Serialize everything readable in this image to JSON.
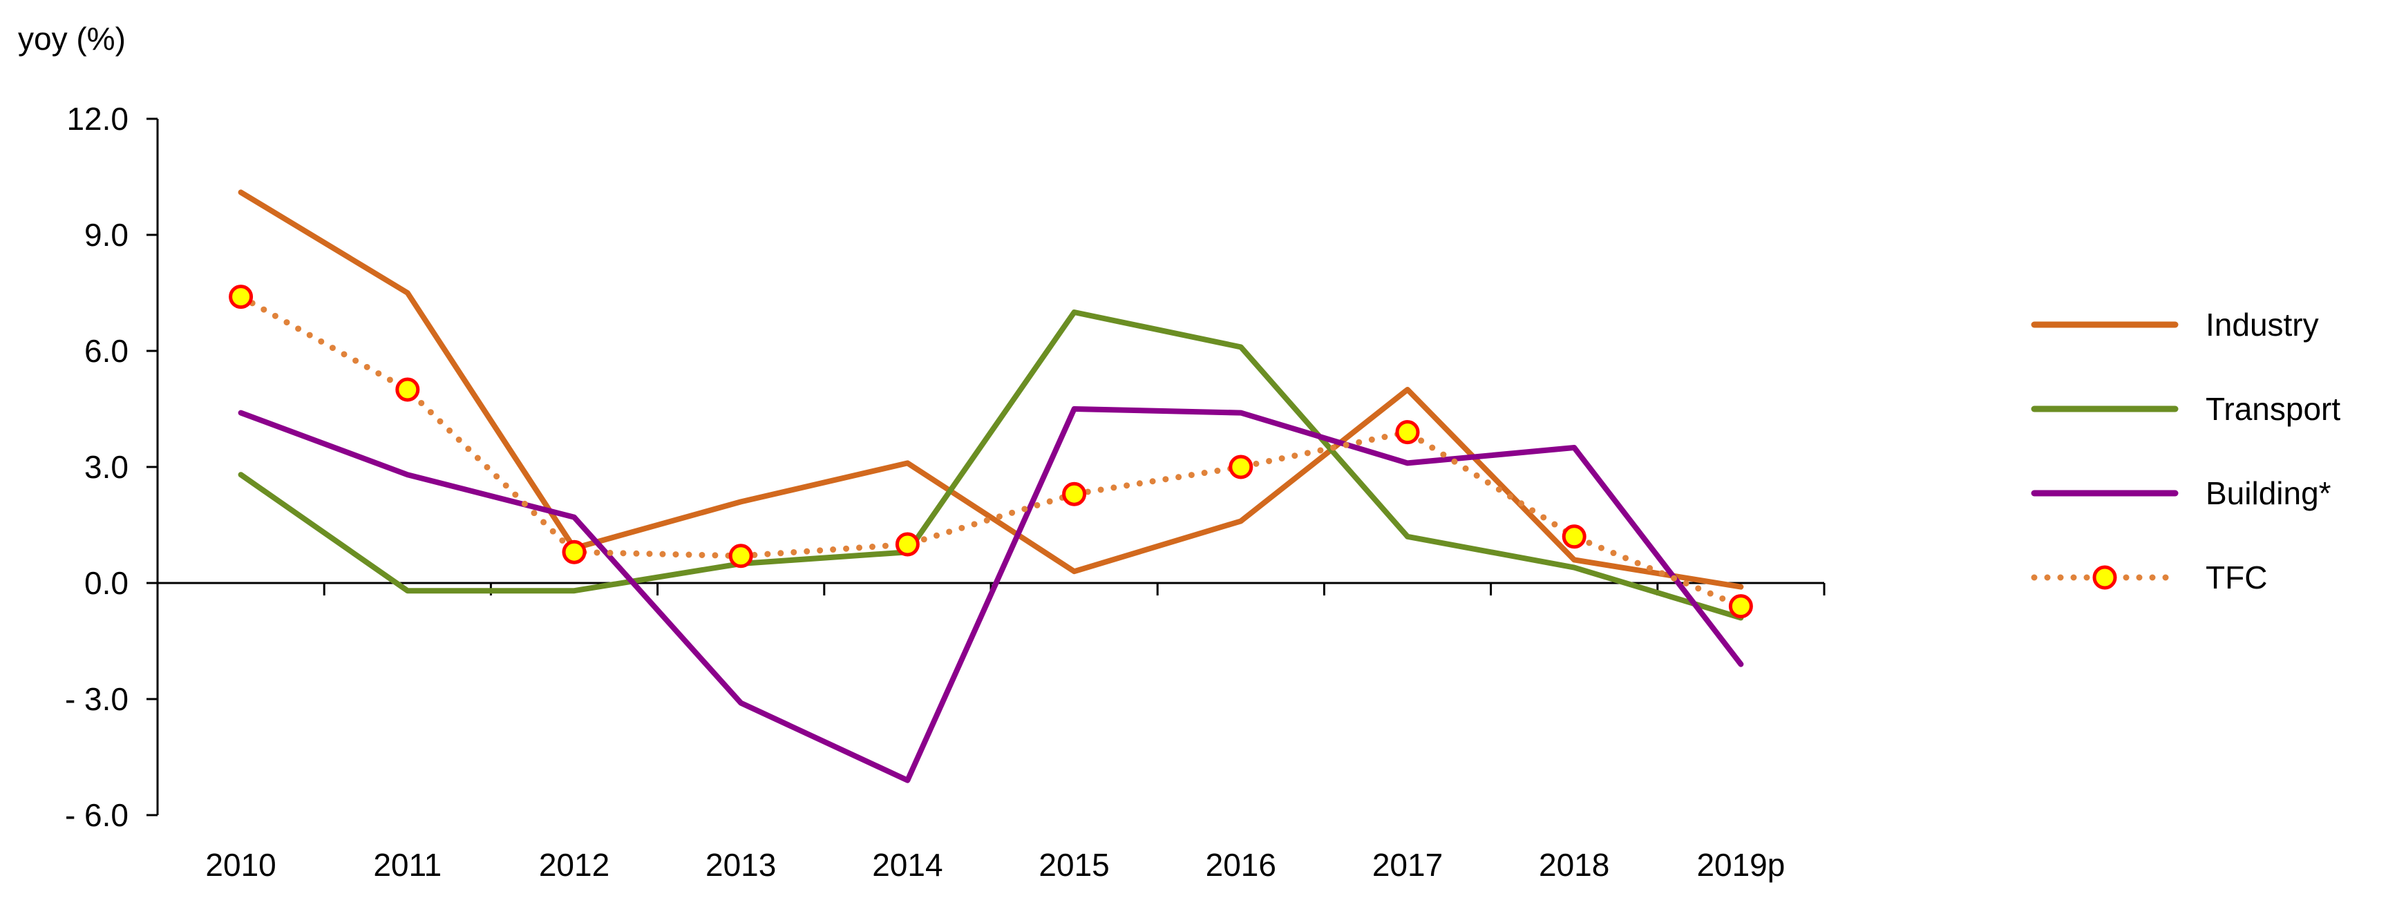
{
  "chart_data": {
    "type": "line",
    "ylabel": "yoy (%)",
    "xlabel": "",
    "categories": [
      "2010",
      "2011",
      "2012",
      "2013",
      "2014",
      "2015",
      "2016",
      "2017",
      "2018",
      "2019p"
    ],
    "ylim": [
      -6.0,
      12.0
    ],
    "yticks": [
      12.0,
      9.0,
      6.0,
      3.0,
      0.0,
      -3.0,
      -6.0
    ],
    "ytick_labels": [
      "12.0",
      "9.0",
      "6.0",
      "3.0",
      "0.0",
      "- 3.0",
      "- 6.0"
    ],
    "grid": false,
    "legend_position": "right",
    "series": [
      {
        "name": "Industry",
        "color": "#D2691E",
        "style": "solid",
        "marker": "none",
        "values": [
          10.1,
          7.5,
          0.9,
          2.1,
          3.1,
          0.3,
          1.6,
          5.0,
          0.6,
          -0.1
        ]
      },
      {
        "name": "Transport",
        "color": "#6B8E23",
        "style": "solid",
        "marker": "none",
        "values": [
          2.8,
          -0.2,
          -0.2,
          0.5,
          0.8,
          7.0,
          6.1,
          1.2,
          0.4,
          -0.9
        ]
      },
      {
        "name": "Building*",
        "color": "#8B008B",
        "style": "solid",
        "marker": "none",
        "values": [
          4.4,
          2.8,
          1.7,
          -3.1,
          -5.1,
          4.5,
          4.4,
          3.1,
          3.5,
          -2.1
        ]
      },
      {
        "name": "TFC",
        "color": "#E0823A",
        "style": "dotted",
        "marker": "circle",
        "marker_fill": "#FFFF00",
        "marker_edge": "#FF0000",
        "values": [
          7.4,
          5.0,
          0.8,
          0.7,
          1.0,
          2.3,
          3.0,
          3.9,
          1.2,
          -0.6
        ]
      }
    ]
  }
}
